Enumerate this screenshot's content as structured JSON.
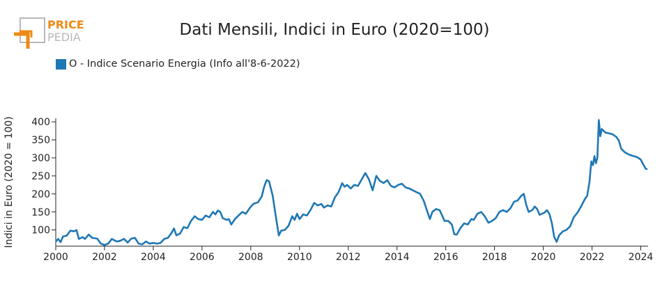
{
  "brand": {
    "name_top": "PRICE",
    "name_bottom": "PEDIA",
    "orange": "#ee8a16",
    "gray": "#b8b8b8"
  },
  "chart_data": {
    "type": "line",
    "title": "Dati Mensili, Indici in Euro (2020=100)",
    "ylabel": "Indici in Euro (2020 = 100)",
    "xlabel": "",
    "xlim": [
      2000,
      2024.3
    ],
    "ylim": [
      55,
      410
    ],
    "x_ticks": [
      "2000",
      "2002",
      "2004",
      "2006",
      "2008",
      "2010",
      "2012",
      "2014",
      "2016",
      "2018",
      "2020",
      "2022",
      "2024"
    ],
    "y_ticks": [
      "100",
      "150",
      "200",
      "250",
      "300",
      "350",
      "400"
    ],
    "legend_position": "top-left",
    "series": [
      {
        "name": "O - Indice Scenario Energia (Info all'8-6-2022)",
        "color": "#1f77b4",
        "points": [
          [
            2000.0,
            68
          ],
          [
            2000.1,
            75
          ],
          [
            2000.2,
            66
          ],
          [
            2000.3,
            82
          ],
          [
            2000.45,
            84
          ],
          [
            2000.6,
            98
          ],
          [
            2000.75,
            96
          ],
          [
            2000.85,
            100
          ],
          [
            2000.95,
            75
          ],
          [
            2001.1,
            80
          ],
          [
            2001.2,
            75
          ],
          [
            2001.35,
            87
          ],
          [
            2001.5,
            78
          ],
          [
            2001.7,
            76
          ],
          [
            2001.85,
            62
          ],
          [
            2002.0,
            58
          ],
          [
            2002.15,
            62
          ],
          [
            2002.3,
            75
          ],
          [
            2002.5,
            68
          ],
          [
            2002.65,
            70
          ],
          [
            2002.8,
            75
          ],
          [
            2002.95,
            65
          ],
          [
            2003.1,
            76
          ],
          [
            2003.25,
            78
          ],
          [
            2003.4,
            62
          ],
          [
            2003.55,
            60
          ],
          [
            2003.7,
            68
          ],
          [
            2003.85,
            62
          ],
          [
            2004.0,
            64
          ],
          [
            2004.15,
            62
          ],
          [
            2004.3,
            64
          ],
          [
            2004.45,
            75
          ],
          [
            2004.6,
            78
          ],
          [
            2004.75,
            92
          ],
          [
            2004.85,
            104
          ],
          [
            2004.95,
            85
          ],
          [
            2005.1,
            90
          ],
          [
            2005.25,
            108
          ],
          [
            2005.4,
            105
          ],
          [
            2005.55,
            125
          ],
          [
            2005.7,
            138
          ],
          [
            2005.85,
            130
          ],
          [
            2006.0,
            128
          ],
          [
            2006.15,
            140
          ],
          [
            2006.3,
            135
          ],
          [
            2006.45,
            150
          ],
          [
            2006.55,
            143
          ],
          [
            2006.65,
            154
          ],
          [
            2006.75,
            150
          ],
          [
            2006.85,
            133
          ],
          [
            2007.0,
            128
          ],
          [
            2007.1,
            130
          ],
          [
            2007.2,
            115
          ],
          [
            2007.35,
            130
          ],
          [
            2007.5,
            140
          ],
          [
            2007.65,
            150
          ],
          [
            2007.8,
            145
          ],
          [
            2007.95,
            160
          ],
          [
            2008.1,
            172
          ],
          [
            2008.3,
            177
          ],
          [
            2008.45,
            193
          ],
          [
            2008.55,
            220
          ],
          [
            2008.65,
            238
          ],
          [
            2008.75,
            235
          ],
          [
            2008.9,
            195
          ],
          [
            2009.0,
            150
          ],
          [
            2009.15,
            85
          ],
          [
            2009.25,
            98
          ],
          [
            2009.4,
            100
          ],
          [
            2009.55,
            112
          ],
          [
            2009.7,
            138
          ],
          [
            2009.8,
            128
          ],
          [
            2009.9,
            145
          ],
          [
            2010.0,
            130
          ],
          [
            2010.15,
            143
          ],
          [
            2010.3,
            140
          ],
          [
            2010.45,
            155
          ],
          [
            2010.6,
            175
          ],
          [
            2010.75,
            168
          ],
          [
            2010.9,
            172
          ],
          [
            2011.0,
            162
          ],
          [
            2011.15,
            168
          ],
          [
            2011.3,
            165
          ],
          [
            2011.45,
            190
          ],
          [
            2011.6,
            205
          ],
          [
            2011.75,
            230
          ],
          [
            2011.85,
            220
          ],
          [
            2011.95,
            225
          ],
          [
            2012.1,
            215
          ],
          [
            2012.25,
            225
          ],
          [
            2012.4,
            222
          ],
          [
            2012.55,
            240
          ],
          [
            2012.7,
            258
          ],
          [
            2012.85,
            240
          ],
          [
            2013.0,
            210
          ],
          [
            2013.15,
            250
          ],
          [
            2013.3,
            236
          ],
          [
            2013.45,
            230
          ],
          [
            2013.6,
            238
          ],
          [
            2013.75,
            222
          ],
          [
            2013.9,
            218
          ],
          [
            2014.05,
            225
          ],
          [
            2014.2,
            228
          ],
          [
            2014.35,
            218
          ],
          [
            2014.5,
            215
          ],
          [
            2014.65,
            210
          ],
          [
            2014.8,
            205
          ],
          [
            2014.95,
            200
          ],
          [
            2015.1,
            180
          ],
          [
            2015.25,
            150
          ],
          [
            2015.35,
            130
          ],
          [
            2015.45,
            150
          ],
          [
            2015.6,
            158
          ],
          [
            2015.75,
            155
          ],
          [
            2015.85,
            140
          ],
          [
            2015.95,
            125
          ],
          [
            2016.1,
            125
          ],
          [
            2016.25,
            115
          ],
          [
            2016.35,
            88
          ],
          [
            2016.45,
            87
          ],
          [
            2016.6,
            105
          ],
          [
            2016.75,
            118
          ],
          [
            2016.9,
            115
          ],
          [
            2017.05,
            130
          ],
          [
            2017.15,
            128
          ],
          [
            2017.3,
            145
          ],
          [
            2017.45,
            150
          ],
          [
            2017.6,
            138
          ],
          [
            2017.75,
            120
          ],
          [
            2017.9,
            125
          ],
          [
            2018.05,
            133
          ],
          [
            2018.2,
            150
          ],
          [
            2018.35,
            155
          ],
          [
            2018.5,
            150
          ],
          [
            2018.65,
            160
          ],
          [
            2018.8,
            178
          ],
          [
            2018.95,
            182
          ],
          [
            2019.1,
            195
          ],
          [
            2019.2,
            200
          ],
          [
            2019.3,
            170
          ],
          [
            2019.4,
            150
          ],
          [
            2019.55,
            155
          ],
          [
            2019.65,
            165
          ],
          [
            2019.75,
            158
          ],
          [
            2019.85,
            142
          ],
          [
            2019.95,
            145
          ],
          [
            2020.05,
            148
          ],
          [
            2020.15,
            155
          ],
          [
            2020.25,
            145
          ],
          [
            2020.35,
            120
          ],
          [
            2020.45,
            80
          ],
          [
            2020.55,
            67
          ],
          [
            2020.65,
            85
          ],
          [
            2020.8,
            96
          ],
          [
            2020.95,
            100
          ],
          [
            2021.1,
            110
          ],
          [
            2021.25,
            135
          ],
          [
            2021.4,
            148
          ],
          [
            2021.55,
            165
          ],
          [
            2021.7,
            185
          ],
          [
            2021.8,
            195
          ],
          [
            2021.9,
            235
          ],
          [
            2021.97,
            290
          ],
          [
            2022.04,
            280
          ],
          [
            2022.1,
            305
          ],
          [
            2022.16,
            285
          ],
          [
            2022.22,
            300
          ],
          [
            2022.28,
            405
          ],
          [
            2022.34,
            360
          ],
          [
            2022.4,
            380
          ],
          [
            2022.55,
            370
          ],
          [
            2022.7,
            368
          ],
          [
            2022.85,
            365
          ],
          [
            2023.0,
            358
          ],
          [
            2023.1,
            348
          ],
          [
            2023.2,
            325
          ],
          [
            2023.35,
            315
          ],
          [
            2023.55,
            308
          ],
          [
            2023.7,
            305
          ],
          [
            2023.85,
            302
          ],
          [
            2024.0,
            295
          ],
          [
            2024.1,
            282
          ],
          [
            2024.2,
            270
          ],
          [
            2024.27,
            268
          ]
        ]
      }
    ]
  }
}
